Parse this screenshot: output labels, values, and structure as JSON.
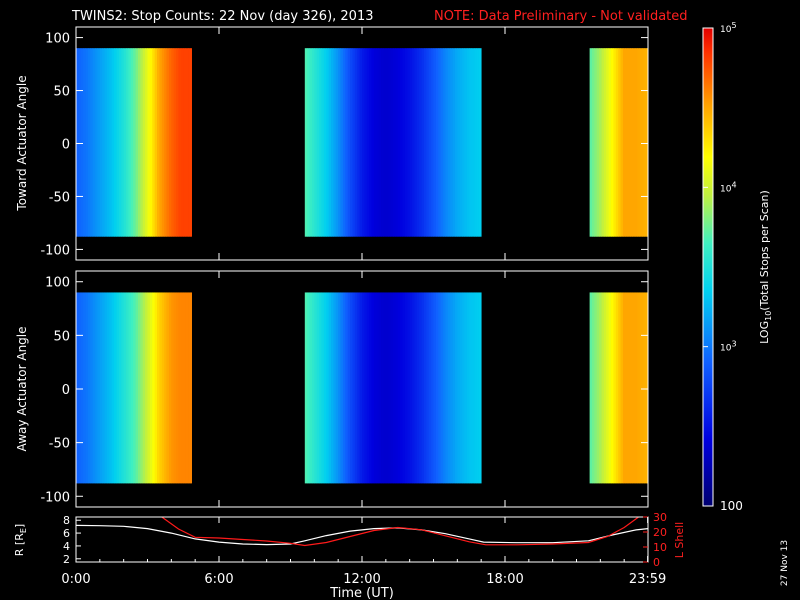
{
  "chart_data": [
    {
      "type": "heatmap",
      "title": "TWINS2: Stop Counts: 22 Nov (day 326), 2013",
      "note": "NOTE: Data Preliminary - Not validated",
      "ylabel": "Toward Actuator Angle",
      "ylim": [
        -110,
        110
      ],
      "yticks": [
        "100",
        "50",
        "0",
        "-50",
        "-100"
      ],
      "data_extent_y": [
        -88,
        90
      ],
      "coverage_hours": [
        [
          0,
          4.85
        ],
        [
          9.6,
          17.0
        ],
        [
          21.55,
          24.0
        ]
      ],
      "profile": [
        {
          "t": 0.0,
          "v": 2.9
        },
        {
          "t": 0.5,
          "v": 3.0
        },
        {
          "t": 1.0,
          "v": 3.15
        },
        {
          "t": 1.5,
          "v": 3.3
        },
        {
          "t": 2.0,
          "v": 3.5
        },
        {
          "t": 2.5,
          "v": 3.75
        },
        {
          "t": 3.0,
          "v": 4.1
        },
        {
          "t": 3.5,
          "v": 4.5
        },
        {
          "t": 4.0,
          "v": 4.7
        },
        {
          "t": 4.4,
          "v": 4.8
        },
        {
          "t": 4.85,
          "v": 4.8
        },
        {
          "t": 9.6,
          "v": 3.7
        },
        {
          "t": 10.0,
          "v": 3.55
        },
        {
          "t": 10.5,
          "v": 3.35
        },
        {
          "t": 11.0,
          "v": 3.1
        },
        {
          "t": 11.5,
          "v": 2.8
        },
        {
          "t": 12.0,
          "v": 2.55
        },
        {
          "t": 12.5,
          "v": 2.4
        },
        {
          "t": 13.0,
          "v": 2.35
        },
        {
          "t": 13.5,
          "v": 2.4
        },
        {
          "t": 14.0,
          "v": 2.5
        },
        {
          "t": 14.5,
          "v": 2.65
        },
        {
          "t": 15.0,
          "v": 2.85
        },
        {
          "t": 15.5,
          "v": 3.05
        },
        {
          "t": 16.0,
          "v": 3.2
        },
        {
          "t": 16.5,
          "v": 3.3
        },
        {
          "t": 17.0,
          "v": 3.35
        },
        {
          "t": 21.55,
          "v": 3.7
        },
        {
          "t": 22.0,
          "v": 3.9
        },
        {
          "t": 22.5,
          "v": 4.2
        },
        {
          "t": 23.0,
          "v": 4.5
        },
        {
          "t": 23.5,
          "v": 4.5
        },
        {
          "t": 24.0,
          "v": 4.45
        }
      ]
    },
    {
      "type": "heatmap",
      "ylabel": "Away Actuator Angle",
      "ylim": [
        -110,
        110
      ],
      "yticks": [
        "100",
        "50",
        "0",
        "-50",
        "-100"
      ],
      "data_extent_y": [
        -88,
        90
      ],
      "coverage_hours": [
        [
          0,
          4.85
        ],
        [
          9.6,
          17.0
        ],
        [
          21.55,
          24.0
        ]
      ],
      "profile": [
        {
          "t": 0.0,
          "v": 2.9
        },
        {
          "t": 0.5,
          "v": 3.0
        },
        {
          "t": 1.0,
          "v": 3.15
        },
        {
          "t": 1.5,
          "v": 3.3
        },
        {
          "t": 2.0,
          "v": 3.5
        },
        {
          "t": 2.5,
          "v": 3.7
        },
        {
          "t": 3.0,
          "v": 4.0
        },
        {
          "t": 3.5,
          "v": 4.35
        },
        {
          "t": 4.0,
          "v": 4.55
        },
        {
          "t": 4.4,
          "v": 4.6
        },
        {
          "t": 4.85,
          "v": 4.6
        },
        {
          "t": 9.6,
          "v": 3.7
        },
        {
          "t": 10.0,
          "v": 3.55
        },
        {
          "t": 10.5,
          "v": 3.35
        },
        {
          "t": 11.0,
          "v": 3.1
        },
        {
          "t": 11.5,
          "v": 2.8
        },
        {
          "t": 12.0,
          "v": 2.55
        },
        {
          "t": 12.5,
          "v": 2.4
        },
        {
          "t": 13.0,
          "v": 2.35
        },
        {
          "t": 13.5,
          "v": 2.4
        },
        {
          "t": 14.0,
          "v": 2.5
        },
        {
          "t": 14.5,
          "v": 2.65
        },
        {
          "t": 15.0,
          "v": 2.85
        },
        {
          "t": 15.5,
          "v": 3.05
        },
        {
          "t": 16.0,
          "v": 3.2
        },
        {
          "t": 16.5,
          "v": 3.3
        },
        {
          "t": 17.0,
          "v": 3.35
        },
        {
          "t": 21.55,
          "v": 3.7
        },
        {
          "t": 22.0,
          "v": 3.9
        },
        {
          "t": 22.5,
          "v": 4.2
        },
        {
          "t": 23.0,
          "v": 4.5
        },
        {
          "t": 23.5,
          "v": 4.5
        },
        {
          "t": 24.0,
          "v": 4.45
        }
      ]
    },
    {
      "type": "line",
      "ylabel_left": "R [RE]",
      "ylabel_right": "L Shell",
      "xlabel": "Time (UT)",
      "xticks": [
        {
          "t": 0,
          "label": "0:00"
        },
        {
          "t": 6,
          "label": "6:00"
        },
        {
          "t": 12,
          "label": "12:00"
        },
        {
          "t": 18,
          "label": "18:00"
        },
        {
          "t": 23.983,
          "label": "23:59"
        }
      ],
      "ylim_left": [
        1.5,
        8.5
      ],
      "yticks_left": [
        "2",
        "4",
        "6",
        "8"
      ],
      "ylim_right": [
        0,
        30
      ],
      "yticks_right": [
        "0",
        "10",
        "20",
        "30"
      ],
      "series": [
        {
          "axis": "left",
          "color": "#ffffff",
          "points": [
            [
              0,
              7.2
            ],
            [
              1,
              7.15
            ],
            [
              2,
              7.05
            ],
            [
              3,
              6.7
            ],
            [
              4,
              6.0
            ],
            [
              5,
              5.1
            ],
            [
              6,
              4.6
            ],
            [
              7,
              4.3
            ],
            [
              8,
              4.2
            ],
            [
              9,
              4.3
            ],
            [
              9.6,
              4.8
            ],
            [
              10.5,
              5.6
            ],
            [
              11.5,
              6.3
            ],
            [
              12.5,
              6.7
            ],
            [
              13.5,
              6.8
            ],
            [
              14.5,
              6.5
            ],
            [
              15.5,
              5.9
            ],
            [
              16.5,
              5.1
            ],
            [
              17.1,
              4.6
            ],
            [
              18.5,
              4.5
            ],
            [
              20,
              4.5
            ],
            [
              21.5,
              4.8
            ],
            [
              22.5,
              5.7
            ],
            [
              23.5,
              6.5
            ],
            [
              24,
              6.7
            ]
          ]
        },
        {
          "axis": "right",
          "color": "#ff1a1a",
          "points": [
            [
              3.6,
              30
            ],
            [
              4.3,
              22
            ],
            [
              5,
              16.5
            ],
            [
              6,
              16
            ],
            [
              7,
              15
            ],
            [
              8,
              14
            ],
            [
              9,
              12.5
            ],
            [
              9.6,
              11
            ],
            [
              10.5,
              13
            ],
            [
              11.5,
              17
            ],
            [
              12.5,
              21
            ],
            [
              13.5,
              23
            ],
            [
              14.5,
              21.5
            ],
            [
              15.5,
              17.5
            ],
            [
              16.5,
              13.5
            ],
            [
              17.2,
              11.5
            ],
            [
              18.5,
              11.5
            ],
            [
              20,
              12
            ],
            [
              21.5,
              13
            ],
            [
              22.3,
              17
            ],
            [
              23,
              23
            ],
            [
              23.6,
              30
            ]
          ]
        }
      ]
    }
  ],
  "colorbar": {
    "label": "LOG10(Total Stops per Scan)",
    "label_main": "LOG",
    "label_sub": "10",
    "label_rest": "(Total Stops per Scan)",
    "ticks": [
      {
        "v": 5,
        "base": "10",
        "exp": "5"
      },
      {
        "v": 4,
        "base": "10",
        "exp": "4"
      },
      {
        "v": 3,
        "base": "10",
        "exp": "3"
      },
      {
        "v": 2,
        "text": "100"
      }
    ],
    "range": [
      2,
      5
    ]
  },
  "units": {
    "re_main": "R [R",
    "re_sub": "E",
    "re_close": "]"
  },
  "timestamp": "27 Nov 13"
}
